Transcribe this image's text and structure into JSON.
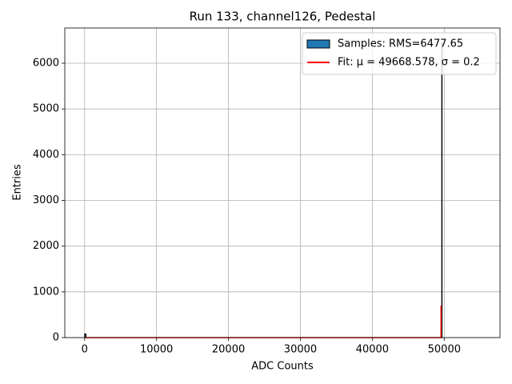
{
  "chart_data": {
    "type": "histogram",
    "title": "Run 133, channel126, Pedestal",
    "xlabel": "ADC Counts",
    "ylabel": "Entries",
    "xlim": [
      -2750,
      57750
    ],
    "ylim": [
      0,
      6770
    ],
    "xticks": [
      0,
      10000,
      20000,
      30000,
      40000,
      50000
    ],
    "yticks": [
      0,
      1000,
      2000,
      3000,
      4000,
      5000,
      6000
    ],
    "grid": true,
    "legend": "upper right",
    "series": [
      {
        "type": "histogram",
        "name": "Samples: RMS=6477.65",
        "color": "#1f77b4",
        "edgecolor": "#000000",
        "bins": [
          0,
          200,
          49600,
          49650,
          49700,
          55000
        ],
        "values": [
          80,
          0,
          0,
          6447,
          0
        ]
      },
      {
        "type": "line",
        "name": "Fit: μ = 49668.578, σ = 0.2",
        "color": "#ff0000",
        "x": [
          0,
          49550,
          49555,
          49560
        ],
        "values": [
          0,
          0,
          700,
          0
        ]
      }
    ]
  }
}
